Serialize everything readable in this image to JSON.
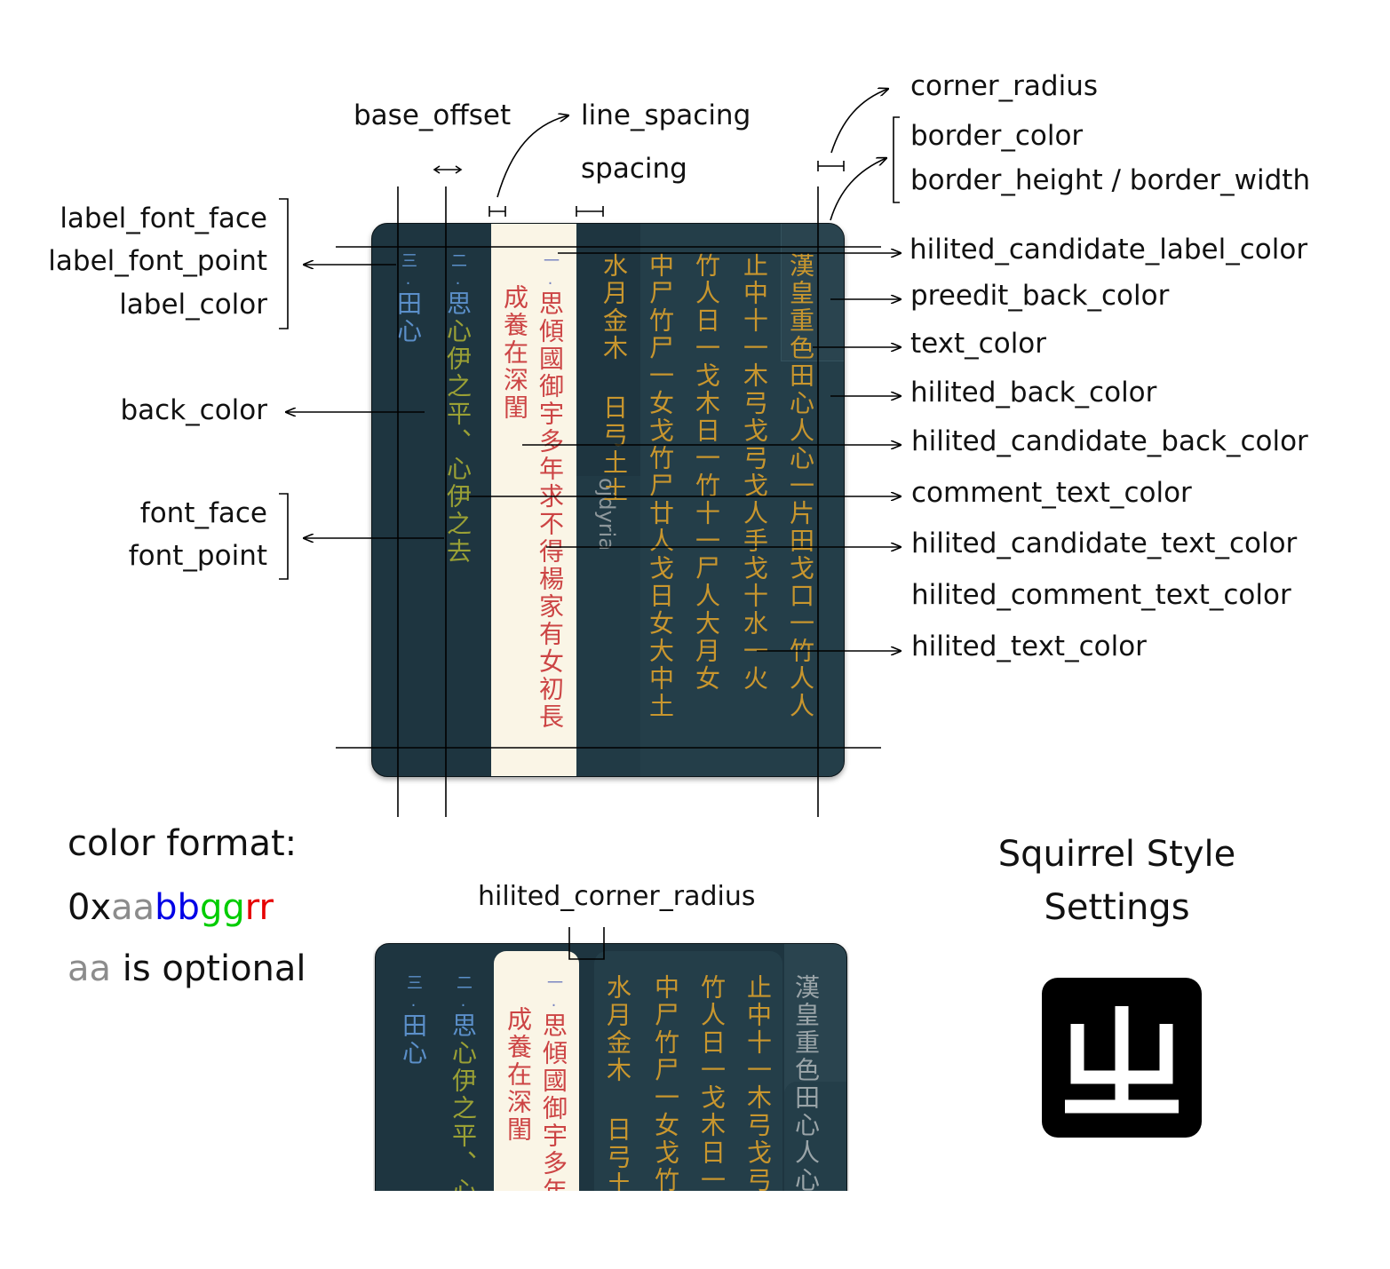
{
  "title_line1": "Squirrel Style",
  "title_line2": "Settings",
  "logo_glyph": "ㄓ",
  "color_format": {
    "heading": "color format:",
    "prefix": "0x",
    "aa": "aa",
    "bb": "bb",
    "gg": "gg",
    "rr": "rr",
    "optional_aa": "aa",
    "optional_rest": " is optional",
    "colors": {
      "aa": "#8c8c8c",
      "bb": "#0000e6",
      "gg": "#00cc00",
      "rr": "#e60000"
    }
  },
  "annotations": {
    "base_offset": "base_offset",
    "line_spacing": "line_spacing",
    "spacing": "spacing",
    "corner_radius": "corner_radius",
    "border_color": "border_color",
    "border_size": "border_height / border_width",
    "label_font_face": "label_font_face",
    "label_font_point": "label_font_point",
    "label_color": "label_color",
    "back_color": "back_color",
    "font_face": "font_face",
    "font_point": "font_point",
    "hilited_candidate_label_color": "hilited_candidate_label_color",
    "preedit_back_color": "preedit_back_color",
    "text_color": "text_color",
    "hilited_back_color": "hilited_back_color",
    "hilited_candidate_back_color": "hilited_candidate_back_color",
    "comment_text_color": "comment_text_color",
    "hilited_candidate_text_color": "hilited_candidate_text_color",
    "hilited_comment_text_color": "hilited_comment_text_color",
    "hilited_text_color": "hilited_text_color",
    "hilited_corner_radius": "hilited_corner_radius"
  },
  "panel_colors": {
    "back": "#1e3540",
    "hilited_back": "#243e49",
    "hilited_candidate_back": "#faf5e6",
    "preedit_back": "#2a444f",
    "label": "#5b8fc9",
    "candidate_text": "#9aa035",
    "hilited_candidate_text": "#cc4444",
    "hilited_label": "#7a86c2",
    "hilited_text": "#c8962e",
    "text": "#9aa4a8",
    "comment": "#7a8a90"
  },
  "panel": {
    "candidates": [
      {
        "label": "三.",
        "text": "田心",
        "comment": ""
      },
      {
        "label": "二.",
        "text": "思",
        "comment": "心伊之平、心伊之去"
      },
      {
        "label": "一.",
        "text": "思傾國御宇多年求不得楊家有女初長",
        "comment": "成養在深閨"
      }
    ],
    "preedit_chars": "ojdyria",
    "hilited_columns": [
      "水月金木 日弓土土",
      "中尸竹尸一女戈竹尸廿人戈日女大中土",
      "竹人日一戈木日一竹十一尸人大月女",
      "止中十一木弓戈弓戈人手戈十水一火",
      "漢皇重色田心人心一片田戈口一竹人人"
    ]
  },
  "panel2": {
    "candidates": [
      {
        "label": "三.",
        "text": "田心",
        "comment": ""
      },
      {
        "label": "二.",
        "text": "思",
        "comment": "心伊之平、心"
      },
      {
        "label": "一.",
        "text": "思傾國御宇多年",
        "comment": "成養在深閨"
      }
    ],
    "hilited_columns": [
      "水月金木 日弓土土",
      "中尸竹尸一女戈竹",
      "竹人日一戈木日一",
      "止中十一木弓戈弓",
      "漢皇重色田心人心"
    ]
  }
}
